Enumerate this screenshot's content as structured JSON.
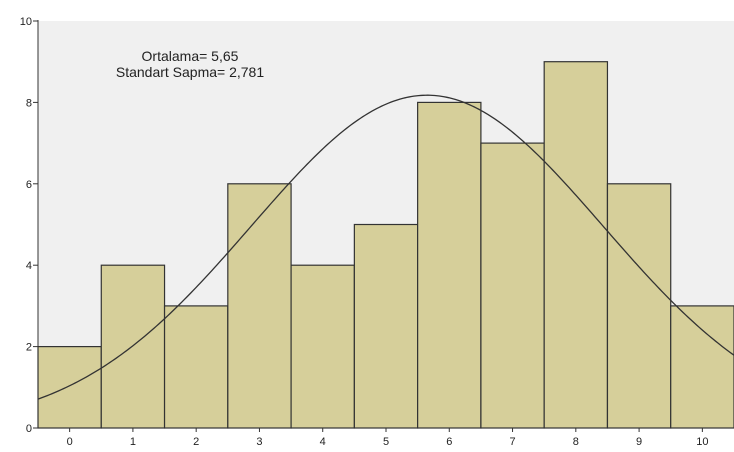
{
  "chart_data": {
    "type": "bar",
    "title": "",
    "xlabel": "",
    "ylabel": "",
    "categories": [
      "0",
      "1",
      "2",
      "3",
      "4",
      "5",
      "6",
      "7",
      "8",
      "9",
      "10"
    ],
    "values": [
      2,
      4,
      3,
      6,
      4,
      5,
      8,
      7,
      9,
      6,
      3
    ],
    "xlim": [
      -0.5,
      10.5
    ],
    "ylim": [
      0,
      10
    ],
    "y_ticks": [
      0,
      2,
      4,
      6,
      8,
      10
    ],
    "grid": false,
    "normal_curve": {
      "mean": 5.65,
      "sd": 2.781,
      "n": 57,
      "bin_width": 1
    },
    "annotations": [
      "Ortalama= 5,65",
      "Standart Sapma= 2,781"
    ],
    "colors": {
      "plot_background": "#f0f0f0",
      "bar_fill": "#d6cf9a",
      "bar_stroke": "#333333",
      "curve": "#333333",
      "axis": "#333333"
    }
  }
}
